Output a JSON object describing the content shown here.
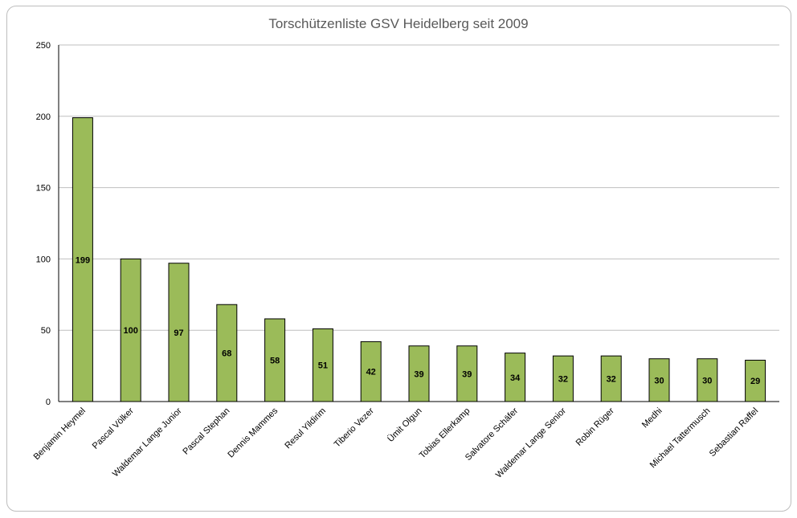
{
  "chart_data": {
    "type": "bar",
    "title": "Torschützenliste GSV Heidelberg seit 2009",
    "categories": [
      "Benjamin Heymel",
      "Pascal Völker",
      "Waldemar Lange Junior",
      "Pascal Stephan",
      "Dennis Mammes",
      "Resul Yildirim",
      "Tiberio Vezer",
      "Ümit Olgun",
      "Tobias Ellerkamp",
      "Salvatore Schäfer",
      "Waldemar Lange Senior",
      "Robin Rüger",
      "Medhi",
      "Michael Tattermusch",
      "Sebastian Raffel"
    ],
    "values": [
      199,
      100,
      97,
      68,
      58,
      51,
      42,
      39,
      39,
      34,
      32,
      32,
      30,
      30,
      29
    ],
    "ylim": [
      0,
      250
    ],
    "yticks": [
      0,
      50,
      100,
      150,
      200,
      250
    ],
    "grid": true,
    "bar_color": "#9BBB59",
    "bar_edge_color": "#000000",
    "data_labels": true
  }
}
